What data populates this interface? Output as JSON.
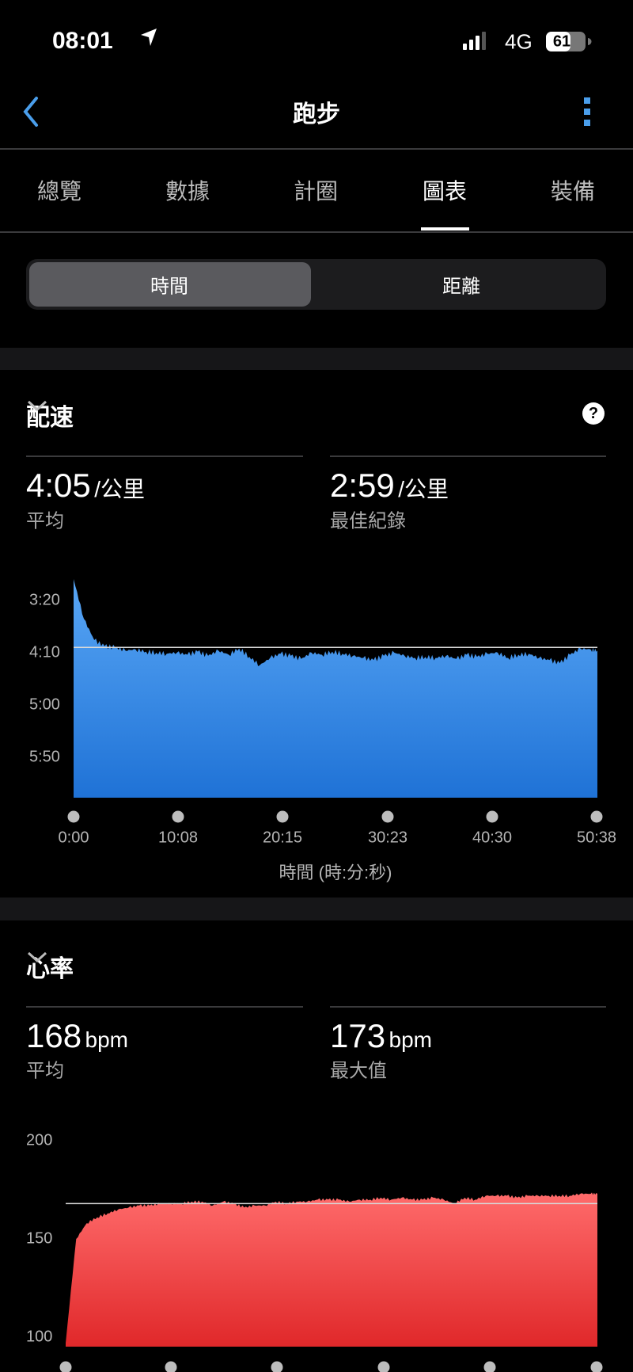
{
  "status_bar": {
    "time": "08:01",
    "network": "4G",
    "battery": "61"
  },
  "nav": {
    "title": "跑步"
  },
  "tabs": [
    {
      "label": "總覽",
      "active": false
    },
    {
      "label": "數據",
      "active": false
    },
    {
      "label": "計圈",
      "active": false
    },
    {
      "label": "圖表",
      "active": true
    },
    {
      "label": "裝備",
      "active": false
    }
  ],
  "segment": {
    "options": [
      "時間",
      "距離"
    ],
    "selected": "時間"
  },
  "pace": {
    "title": "配速",
    "avg_value": "4:05",
    "avg_unit": "/公里",
    "avg_label": "平均",
    "best_value": "2:59",
    "best_unit": "/公里",
    "best_label": "最佳紀錄"
  },
  "heart_rate": {
    "title": "心率",
    "avg_value": "168",
    "avg_unit": "bpm",
    "avg_label": "平均",
    "max_value": "173",
    "max_unit": "bpm",
    "max_label": "最大值"
  },
  "colors": {
    "pace_fill": "#3d8fe8",
    "hr_fill": "#f0514f",
    "accent": "#4a9eeb"
  },
  "chart_data": [
    {
      "type": "area",
      "xlabel": "時間 (時:分:秒)",
      "x_ticks": [
        "0:00",
        "10:08",
        "20:15",
        "30:23",
        "40:30",
        "50:38"
      ],
      "y_ticks": [
        "3:20",
        "4:10",
        "5:00",
        "5:50"
      ],
      "y_inverted": true,
      "reference_line": "4:05",
      "x": [
        "0:00",
        "1:00",
        "2:00",
        "3:00",
        "4:00",
        "5:00",
        "6:00",
        "7:00",
        "8:00",
        "9:00",
        "10:00",
        "11:00",
        "12:00",
        "13:00",
        "14:00",
        "15:00",
        "16:00",
        "17:00",
        "18:00",
        "19:00",
        "20:00",
        "21:00",
        "22:00",
        "23:00",
        "24:00",
        "25:00",
        "26:00",
        "27:00",
        "28:00",
        "29:00",
        "30:00",
        "31:00",
        "32:00",
        "33:00",
        "34:00",
        "35:00",
        "36:00",
        "37:00",
        "38:00",
        "39:00",
        "40:00",
        "41:00",
        "42:00",
        "43:00",
        "44:00",
        "45:00",
        "46:00",
        "47:00",
        "48:00",
        "49:00",
        "50:00",
        "50:38"
      ],
      "values": [
        "3:00",
        "3:38",
        "3:58",
        "4:04",
        "4:05",
        "4:08",
        "4:07",
        "4:09",
        "4:10",
        "4:11",
        "4:10",
        "4:12",
        "4:09",
        "4:13",
        "4:08",
        "4:12",
        "4:06",
        "4:14",
        "4:22",
        "4:15",
        "4:11",
        "4:13",
        "4:16",
        "4:10",
        "4:12",
        "4:09",
        "4:11",
        "4:13",
        "4:15",
        "4:17",
        "4:13",
        "4:10",
        "4:13",
        "4:15",
        "4:14",
        "4:15",
        "4:13",
        "4:16",
        "4:12",
        "4:14",
        "4:11",
        "4:10",
        "4:15",
        "4:12",
        "4:11",
        "4:15",
        "4:17",
        "4:20",
        "4:12",
        "4:06",
        "4:07",
        "4:08"
      ]
    },
    {
      "type": "area",
      "y_ticks": [
        "200",
        "150",
        "100"
      ],
      "reference_line": 168,
      "x": [
        "0:00",
        "1:00",
        "2:00",
        "3:00",
        "4:00",
        "5:00",
        "6:00",
        "7:00",
        "8:00",
        "9:00",
        "10:00",
        "11:00",
        "12:00",
        "13:00",
        "14:00",
        "15:00",
        "16:00",
        "17:00",
        "18:00",
        "19:00",
        "20:00",
        "21:00",
        "22:00",
        "23:00",
        "24:00",
        "25:00",
        "26:00",
        "27:00",
        "28:00",
        "29:00",
        "30:00",
        "31:00",
        "32:00",
        "33:00",
        "34:00",
        "35:00",
        "36:00",
        "37:00",
        "38:00",
        "39:00",
        "40:00",
        "41:00",
        "42:00",
        "43:00",
        "44:00",
        "45:00",
        "46:00",
        "47:00",
        "48:00",
        "49:00",
        "50:00",
        "50:38"
      ],
      "values": [
        97,
        150,
        158,
        161,
        163,
        165,
        166,
        167,
        167,
        168,
        168,
        168,
        169,
        169,
        167,
        169,
        168,
        166,
        167,
        167,
        169,
        168,
        169,
        169,
        170,
        170,
        170,
        169,
        170,
        170,
        171,
        170,
        171,
        170,
        170,
        171,
        170,
        168,
        171,
        170,
        172,
        172,
        172,
        171,
        172,
        172,
        172,
        172,
        172,
        173,
        173,
        173
      ]
    }
  ]
}
